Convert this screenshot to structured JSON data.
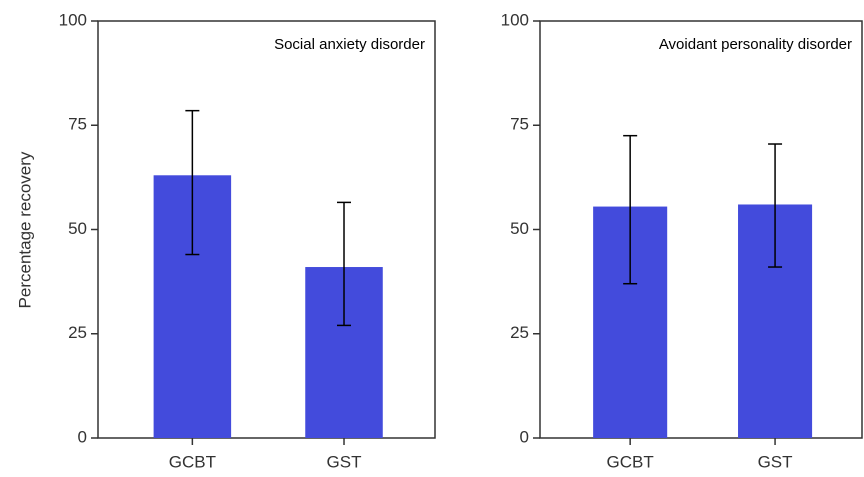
{
  "chart_data": [
    {
      "type": "bar",
      "title": "Social anxiety disorder",
      "ylabel": "Percentage recovery",
      "categories": [
        "GCBT",
        "GST"
      ],
      "values": [
        63,
        41
      ],
      "ci_low": [
        44,
        27
      ],
      "ci_high": [
        78.5,
        56.5
      ],
      "color": "#434bdc",
      "ylim": [
        0,
        100
      ],
      "yticks": [
        0,
        25,
        50,
        75,
        100
      ]
    },
    {
      "type": "bar",
      "title": "Avoidant personality disorder",
      "categories": [
        "GCBT",
        "GST"
      ],
      "values": [
        55.5,
        56
      ],
      "ci_low": [
        37,
        41
      ],
      "ci_high": [
        72.5,
        70.5
      ],
      "color": "#434bdc",
      "ylim": [
        0,
        100
      ],
      "yticks": [
        0,
        25,
        50,
        75,
        100
      ]
    }
  ]
}
